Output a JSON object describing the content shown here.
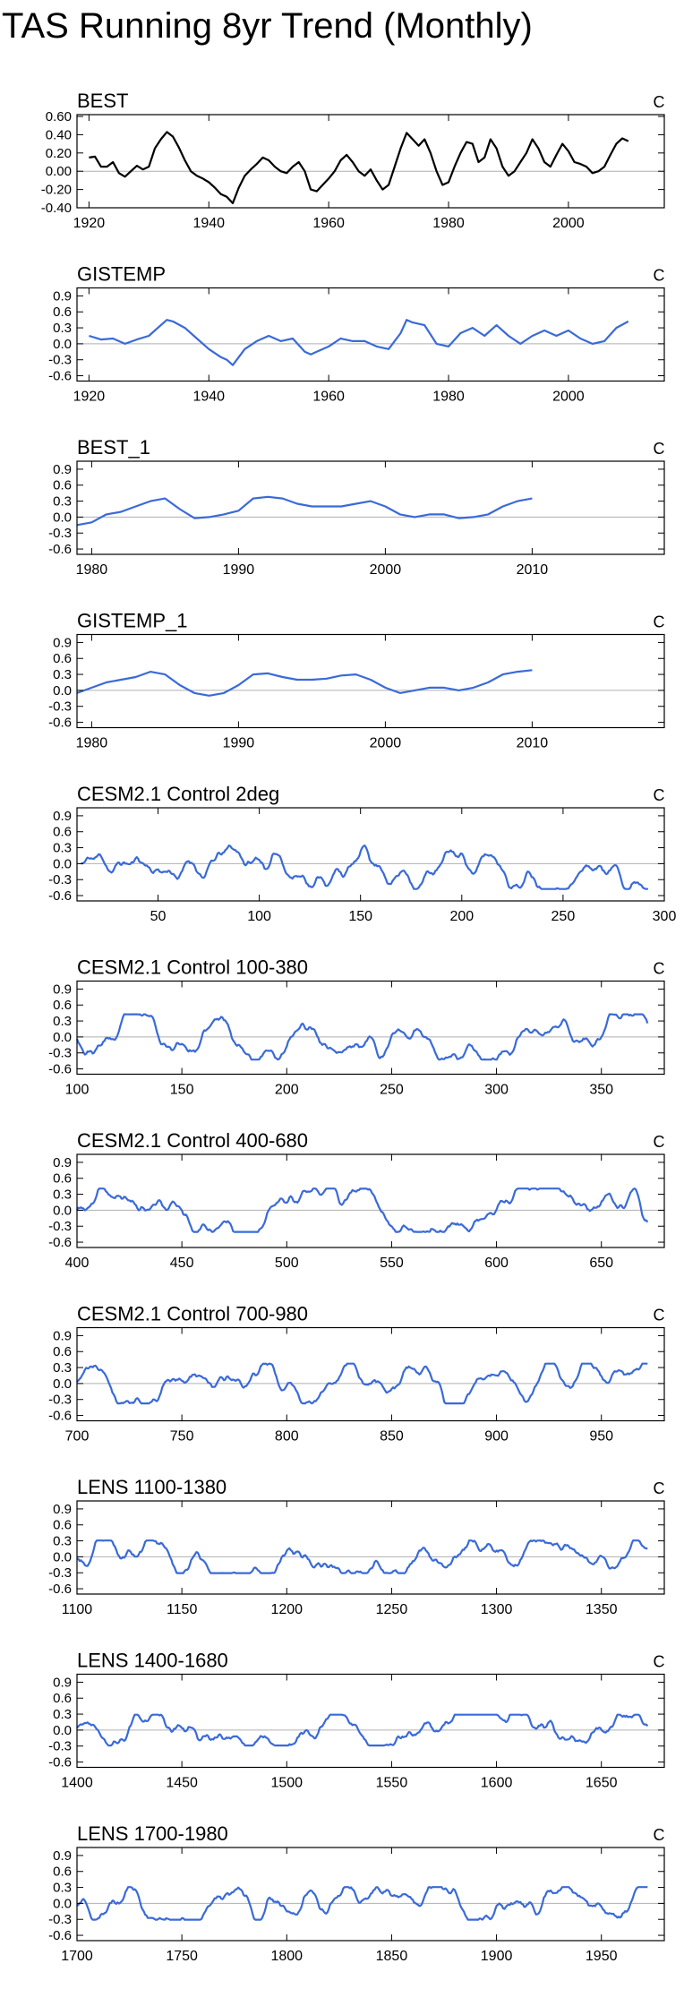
{
  "figure": {
    "title": "TAS Running 8yr Trend (Monthly)"
  },
  "chart_data": [
    {
      "type": "line",
      "title": "BEST",
      "units": "C",
      "color": "#000000",
      "xlim": [
        1918,
        2016
      ],
      "xticks": [
        1920,
        1940,
        1960,
        1980,
        2000
      ],
      "ylim": [
        -0.4,
        0.62
      ],
      "yticks": [
        -0.4,
        -0.2,
        0.0,
        0.2,
        0.4,
        0.6
      ],
      "ytick_labels": [
        "-0.40",
        "-0.20",
        "0.00",
        "0.20",
        "0.40",
        "0.60"
      ],
      "series": [
        {
          "name": "BEST",
          "x": [
            1920,
            1921,
            1922,
            1923,
            1924,
            1925,
            1926,
            1927,
            1928,
            1929,
            1930,
            1931,
            1932,
            1933,
            1934,
            1935,
            1936,
            1937,
            1938,
            1939,
            1940,
            1941,
            1942,
            1943,
            1944,
            1945,
            1946,
            1947,
            1948,
            1949,
            1950,
            1951,
            1952,
            1953,
            1954,
            1955,
            1956,
            1957,
            1958,
            1959,
            1960,
            1961,
            1962,
            1963,
            1964,
            1965,
            1966,
            1967,
            1968,
            1969,
            1970,
            1971,
            1972,
            1973,
            1974,
            1975,
            1976,
            1977,
            1978,
            1979,
            1980,
            1981,
            1982,
            1983,
            1984,
            1985,
            1986,
            1987,
            1988,
            1989,
            1990,
            1991,
            1992,
            1993,
            1994,
            1995,
            1996,
            1997,
            1998,
            1999,
            2000,
            2001,
            2002,
            2003,
            2004,
            2005,
            2006,
            2007,
            2008,
            2009,
            2010
          ],
          "y": [
            0.15,
            0.16,
            0.05,
            0.05,
            0.1,
            -0.02,
            -0.06,
            0.0,
            0.06,
            0.02,
            0.05,
            0.25,
            0.35,
            0.43,
            0.38,
            0.26,
            0.12,
            0.0,
            -0.05,
            -0.08,
            -0.12,
            -0.18,
            -0.25,
            -0.28,
            -0.35,
            -0.18,
            -0.05,
            0.02,
            0.08,
            0.15,
            0.12,
            0.05,
            0.0,
            -0.02,
            0.05,
            0.1,
            0.0,
            -0.2,
            -0.22,
            -0.15,
            -0.08,
            0.0,
            0.12,
            0.18,
            0.1,
            0.0,
            -0.05,
            0.02,
            -0.1,
            -0.2,
            -0.15,
            0.05,
            0.25,
            0.42,
            0.35,
            0.28,
            0.35,
            0.2,
            0.0,
            -0.15,
            -0.12,
            0.05,
            0.2,
            0.32,
            0.3,
            0.1,
            0.15,
            0.35,
            0.25,
            0.05,
            -0.05,
            0.0,
            0.1,
            0.2,
            0.35,
            0.25,
            0.1,
            0.05,
            0.18,
            0.3,
            0.22,
            0.1,
            0.08,
            0.05,
            -0.02,
            0.0,
            0.05,
            0.18,
            0.3,
            0.36,
            0.33
          ]
        }
      ]
    },
    {
      "type": "line",
      "title": "GISTEMP",
      "units": "C",
      "color": "#3a6ad8",
      "xlim": [
        1918,
        2016
      ],
      "xticks": [
        1920,
        1940,
        1960,
        1980,
        2000
      ],
      "ylim": [
        -0.7,
        1.05
      ],
      "yticks": [
        -0.6,
        -0.3,
        0.0,
        0.3,
        0.6,
        0.9
      ],
      "ytick_labels": [
        "-0.6",
        "-0.3",
        "0.0",
        "0.3",
        "0.6",
        "0.9"
      ],
      "series": [
        {
          "name": "GISTEMP",
          "x": [
            1920,
            1922,
            1924,
            1926,
            1928,
            1930,
            1932,
            1933,
            1934,
            1936,
            1938,
            1940,
            1942,
            1943,
            1944,
            1946,
            1948,
            1950,
            1952,
            1954,
            1956,
            1957,
            1958,
            1960,
            1962,
            1964,
            1966,
            1968,
            1970,
            1972,
            1973,
            1974,
            1976,
            1978,
            1980,
            1982,
            1984,
            1986,
            1988,
            1990,
            1992,
            1994,
            1996,
            1998,
            2000,
            2002,
            2004,
            2006,
            2008,
            2010
          ],
          "y": [
            0.15,
            0.08,
            0.1,
            0.0,
            0.08,
            0.15,
            0.35,
            0.45,
            0.42,
            0.3,
            0.1,
            -0.1,
            -0.25,
            -0.3,
            -0.4,
            -0.1,
            0.05,
            0.15,
            0.05,
            0.1,
            -0.15,
            -0.2,
            -0.15,
            -0.05,
            0.1,
            0.05,
            0.05,
            -0.05,
            -0.1,
            0.2,
            0.45,
            0.4,
            0.35,
            0.0,
            -0.05,
            0.2,
            0.3,
            0.15,
            0.35,
            0.15,
            0.0,
            0.15,
            0.25,
            0.15,
            0.25,
            0.1,
            0.0,
            0.05,
            0.3,
            0.42
          ]
        }
      ]
    },
    {
      "type": "line",
      "title": "BEST_1",
      "units": "C",
      "color": "#3a6ad8",
      "xlim": [
        1979,
        2019
      ],
      "xticks": [
        1980,
        1990,
        2000,
        2010
      ],
      "ylim": [
        -0.7,
        1.05
      ],
      "yticks": [
        -0.6,
        -0.3,
        0.0,
        0.3,
        0.6,
        0.9
      ],
      "ytick_labels": [
        "-0.6",
        "-0.3",
        "0.0",
        "0.3",
        "0.6",
        "0.9"
      ],
      "series": [
        {
          "name": "BEST_1",
          "x": [
            1979,
            1980,
            1981,
            1982,
            1983,
            1984,
            1985,
            1986,
            1987,
            1988,
            1989,
            1990,
            1991,
            1992,
            1993,
            1994,
            1995,
            1996,
            1997,
            1998,
            1999,
            2000,
            2001,
            2002,
            2003,
            2004,
            2005,
            2006,
            2007,
            2008,
            2009,
            2010
          ],
          "y": [
            -0.15,
            -0.1,
            0.05,
            0.1,
            0.2,
            0.3,
            0.35,
            0.15,
            -0.02,
            0.0,
            0.05,
            0.12,
            0.35,
            0.38,
            0.35,
            0.25,
            0.2,
            0.2,
            0.2,
            0.25,
            0.3,
            0.2,
            0.05,
            0.0,
            0.05,
            0.05,
            -0.02,
            0.0,
            0.05,
            0.2,
            0.3,
            0.35
          ]
        }
      ]
    },
    {
      "type": "line",
      "title": "GISTEMP_1",
      "units": "C",
      "color": "#3a6ad8",
      "xlim": [
        1979,
        2019
      ],
      "xticks": [
        1980,
        1990,
        2000,
        2010
      ],
      "ylim": [
        -0.7,
        1.05
      ],
      "yticks": [
        -0.6,
        -0.3,
        0.0,
        0.3,
        0.6,
        0.9
      ],
      "ytick_labels": [
        "-0.6",
        "-0.3",
        "0.0",
        "0.3",
        "0.6",
        "0.9"
      ],
      "series": [
        {
          "name": "GISTEMP_1",
          "x": [
            1979,
            1980,
            1981,
            1982,
            1983,
            1984,
            1985,
            1986,
            1987,
            1988,
            1989,
            1990,
            1991,
            1992,
            1993,
            1994,
            1995,
            1996,
            1997,
            1998,
            1999,
            2000,
            2001,
            2002,
            2003,
            2004,
            2005,
            2006,
            2007,
            2008,
            2009,
            2010
          ],
          "y": [
            -0.05,
            0.05,
            0.15,
            0.2,
            0.25,
            0.35,
            0.3,
            0.1,
            -0.05,
            -0.1,
            -0.05,
            0.1,
            0.3,
            0.32,
            0.25,
            0.2,
            0.2,
            0.22,
            0.28,
            0.3,
            0.2,
            0.05,
            -0.05,
            0.0,
            0.05,
            0.05,
            0.0,
            0.05,
            0.15,
            0.3,
            0.35,
            0.38
          ]
        }
      ]
    },
    {
      "type": "line",
      "title": "CESM2.1 Control 2deg",
      "units": "C",
      "color": "#3a6ad8",
      "xlim": [
        10,
        300
      ],
      "xticks": [
        50,
        100,
        150,
        200,
        250,
        300
      ],
      "ylim": [
        -0.7,
        1.05
      ],
      "yticks": [
        -0.6,
        -0.3,
        0.0,
        0.3,
        0.6,
        0.9
      ],
      "ytick_labels": [
        "-0.6",
        "-0.3",
        "0.0",
        "0.3",
        "0.6",
        "0.9"
      ],
      "series": [
        {
          "name": "CESM2.1 Control 2deg",
          "x_range": [
            12,
            292
          ],
          "amplitude": 0.28,
          "seed": 11,
          "y_sample": [
            0.0,
            0.25,
            -0.35,
            0.3,
            -0.2,
            0.35,
            0.0,
            -0.3,
            0.2,
            -0.1
          ]
        }
      ]
    },
    {
      "type": "line",
      "title": "CESM2.1 Control 100-380",
      "units": "C",
      "color": "#3a6ad8",
      "xlim": [
        100,
        380
      ],
      "xticks": [
        100,
        150,
        200,
        250,
        300,
        350
      ],
      "ylim": [
        -0.7,
        1.05
      ],
      "yticks": [
        -0.6,
        -0.3,
        0.0,
        0.3,
        0.6,
        0.9
      ],
      "ytick_labels": [
        "-0.6",
        "-0.3",
        "0.0",
        "0.3",
        "0.6",
        "0.9"
      ],
      "series": [
        {
          "name": "CESM2.1 Control 100-380",
          "x_range": [
            100,
            372
          ],
          "amplitude": 0.25,
          "seed": 23,
          "y_sample": [
            0.2,
            -0.3,
            0.35,
            -0.1,
            0.25,
            -0.35,
            0.3,
            0.0,
            -0.2,
            0.15
          ]
        }
      ]
    },
    {
      "type": "line",
      "title": "CESM2.1 Control 400-680",
      "units": "C",
      "color": "#3a6ad8",
      "xlim": [
        400,
        680
      ],
      "xticks": [
        400,
        450,
        500,
        550,
        600,
        650
      ],
      "ylim": [
        -0.7,
        1.05
      ],
      "yticks": [
        -0.6,
        -0.3,
        0.0,
        0.3,
        0.6,
        0.9
      ],
      "ytick_labels": [
        "-0.6",
        "-0.3",
        "0.0",
        "0.3",
        "0.6",
        "0.9"
      ],
      "series": [
        {
          "name": "CESM2.1 Control 400-680",
          "x_range": [
            400,
            672
          ],
          "amplitude": 0.24,
          "seed": 37,
          "y_sample": [
            0.1,
            0.4,
            -0.3,
            0.2,
            -0.15,
            0.45,
            -0.4,
            0.1,
            0.3,
            -0.05
          ]
        }
      ]
    },
    {
      "type": "line",
      "title": "CESM2.1 Control 700-980",
      "units": "C",
      "color": "#3a6ad8",
      "xlim": [
        700,
        980
      ],
      "xticks": [
        700,
        750,
        800,
        850,
        900,
        950
      ],
      "ylim": [
        -0.7,
        1.05
      ],
      "yticks": [
        -0.6,
        -0.3,
        0.0,
        0.3,
        0.6,
        0.9
      ],
      "ytick_labels": [
        "-0.6",
        "-0.3",
        "0.0",
        "0.3",
        "0.6",
        "0.9"
      ],
      "series": [
        {
          "name": "CESM2.1 Control 700-980",
          "x_range": [
            700,
            972
          ],
          "amplitude": 0.22,
          "seed": 41,
          "y_sample": [
            0.1,
            -0.1,
            0.2,
            -0.2,
            0.3,
            -0.3,
            0.1,
            0.4,
            -0.5,
            0.2
          ]
        }
      ]
    },
    {
      "type": "line",
      "title": "LENS 1100-1380",
      "units": "C",
      "color": "#3a6ad8",
      "xlim": [
        1100,
        1380
      ],
      "xticks": [
        1100,
        1150,
        1200,
        1250,
        1300,
        1350
      ],
      "ylim": [
        -0.7,
        1.05
      ],
      "yticks": [
        -0.6,
        -0.3,
        0.0,
        0.3,
        0.6,
        0.9
      ],
      "ytick_labels": [
        "-0.6",
        "-0.3",
        "0.0",
        "0.3",
        "0.6",
        "0.9"
      ],
      "series": [
        {
          "name": "LENS 1100-1380",
          "x_range": [
            1100,
            1372
          ],
          "amplitude": 0.18,
          "seed": 53,
          "y_sample": [
            0.1,
            -0.2,
            0.3,
            -0.25,
            0.2,
            0.0,
            -0.3,
            0.25,
            0.1,
            -0.1
          ]
        }
      ]
    },
    {
      "type": "line",
      "title": "LENS 1400-1680",
      "units": "C",
      "color": "#3a6ad8",
      "xlim": [
        1400,
        1680
      ],
      "xticks": [
        1400,
        1450,
        1500,
        1550,
        1600,
        1650
      ],
      "ylim": [
        -0.7,
        1.05
      ],
      "yticks": [
        -0.6,
        -0.3,
        0.0,
        0.3,
        0.6,
        0.9
      ],
      "ytick_labels": [
        "-0.6",
        "-0.3",
        "0.0",
        "0.3",
        "0.6",
        "0.9"
      ],
      "series": [
        {
          "name": "LENS 1400-1680",
          "x_range": [
            1400,
            1672
          ],
          "amplitude": 0.17,
          "seed": 67,
          "y_sample": [
            0.0,
            -0.35,
            0.25,
            0.1,
            -0.1,
            0.2,
            0.0,
            -0.2,
            0.3,
            -0.4
          ]
        }
      ]
    },
    {
      "type": "line",
      "title": "LENS 1700-1980",
      "units": "C",
      "color": "#3a6ad8",
      "xlim": [
        1700,
        1980
      ],
      "xticks": [
        1700,
        1750,
        1800,
        1850,
        1900,
        1950
      ],
      "ylim": [
        -0.7,
        1.05
      ],
      "yticks": [
        -0.6,
        -0.3,
        0.0,
        0.3,
        0.6,
        0.9
      ],
      "ytick_labels": [
        "-0.6",
        "-0.3",
        "0.0",
        "0.3",
        "0.6",
        "0.9"
      ],
      "series": [
        {
          "name": "LENS 1700-1980",
          "x_range": [
            1700,
            1972
          ],
          "amplitude": 0.18,
          "seed": 79,
          "y_sample": [
            0.2,
            0.1,
            0.4,
            -0.1,
            0.1,
            0.35,
            -0.2,
            0.25,
            -0.1,
            0.15
          ]
        }
      ]
    }
  ]
}
